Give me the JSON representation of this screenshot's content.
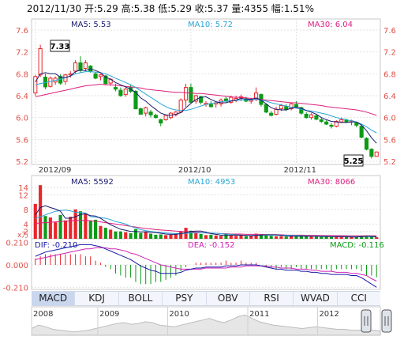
{
  "header": {
    "date": "2012/11/30",
    "open_label": "开:",
    "open": "5.29",
    "high_label": "高:",
    "high": "5.38",
    "low_label": "低:",
    "low": "5.29",
    "close_label": "收:",
    "close": "5.37",
    "volume_label": "量:",
    "volume": "4355",
    "change_label": "幅:",
    "change": "1.51%"
  },
  "colors": {
    "up": "#e8252b",
    "down": "#0c9a17",
    "ma5": "#1a1a6e",
    "ma10": "#2aa6d8",
    "ma30": "#dd1f7d",
    "axis_text": "#e0504a",
    "grid": "#e2e2e2",
    "dif": "#1919a6",
    "dea": "#d222b5"
  },
  "chart_data": [
    {
      "type": "candlestick",
      "legend": [
        "MA5: 5.53",
        "MA10: 5.72",
        "MA30: 6.04"
      ],
      "ylim": [
        5.2,
        7.6
      ],
      "y_ticks": [
        "7.6",
        "7.2",
        "6.8",
        "6.4",
        "6.0",
        "5.6",
        "5.2"
      ],
      "x_ticks": [
        "2012/09",
        "2012/10",
        "2012/11"
      ],
      "x_tick_index": [
        0,
        31,
        52
      ],
      "annotations": {
        "high": "7.33",
        "low": "5.25"
      },
      "ohlc": [
        [
          6.45,
          6.78,
          6.4,
          6.75
        ],
        [
          6.78,
          7.33,
          6.74,
          7.26
        ],
        [
          6.74,
          6.8,
          6.52,
          6.56
        ],
        [
          6.57,
          6.75,
          6.55,
          6.72
        ],
        [
          6.65,
          6.75,
          6.6,
          6.72
        ],
        [
          6.75,
          6.79,
          6.6,
          6.63
        ],
        [
          6.66,
          6.8,
          6.6,
          6.78
        ],
        [
          6.78,
          6.85,
          6.73,
          6.8
        ],
        [
          6.85,
          7.05,
          6.8,
          7.0
        ],
        [
          7.0,
          7.12,
          6.82,
          6.86
        ],
        [
          6.9,
          7.05,
          6.85,
          7.0
        ],
        [
          6.94,
          6.96,
          6.82,
          6.85
        ],
        [
          6.8,
          6.84,
          6.7,
          6.72
        ],
        [
          6.75,
          6.8,
          6.68,
          6.78
        ],
        [
          6.76,
          6.78,
          6.6,
          6.62
        ],
        [
          6.63,
          6.72,
          6.58,
          6.7
        ],
        [
          6.55,
          6.62,
          6.48,
          6.52
        ],
        [
          6.5,
          6.55,
          6.38,
          6.4
        ],
        [
          6.42,
          6.55,
          6.38,
          6.52
        ],
        [
          6.55,
          6.6,
          6.45,
          6.48
        ],
        [
          6.48,
          6.5,
          6.15,
          6.16
        ],
        [
          6.16,
          6.18,
          6.05,
          6.06
        ],
        [
          6.08,
          6.2,
          6.02,
          6.18
        ],
        [
          6.1,
          6.14,
          6.0,
          6.05
        ],
        [
          6.04,
          6.07,
          5.98,
          6.0
        ],
        [
          5.96,
          5.98,
          5.84,
          5.9
        ],
        [
          5.96,
          6.05,
          5.94,
          6.04
        ],
        [
          6.0,
          6.1,
          5.97,
          6.08
        ],
        [
          6.05,
          6.12,
          6.02,
          6.1
        ],
        [
          6.1,
          6.35,
          6.08,
          6.32
        ],
        [
          6.32,
          6.62,
          6.2,
          6.55
        ],
        [
          6.55,
          6.62,
          6.26,
          6.28
        ],
        [
          6.3,
          6.42,
          6.25,
          6.4
        ],
        [
          6.38,
          6.4,
          6.24,
          6.28
        ],
        [
          6.24,
          6.3,
          6.2,
          6.26
        ],
        [
          6.24,
          6.3,
          6.18,
          6.2
        ],
        [
          6.25,
          6.3,
          6.18,
          6.27
        ],
        [
          6.25,
          6.35,
          6.2,
          6.32
        ],
        [
          6.34,
          6.38,
          6.28,
          6.3
        ],
        [
          6.28,
          6.4,
          6.25,
          6.37
        ],
        [
          6.32,
          6.4,
          6.28,
          6.35
        ],
        [
          6.36,
          6.42,
          6.3,
          6.38
        ],
        [
          6.34,
          6.38,
          6.28,
          6.3
        ],
        [
          6.3,
          6.36,
          6.25,
          6.32
        ],
        [
          6.35,
          6.55,
          6.3,
          6.45
        ],
        [
          6.42,
          6.44,
          6.2,
          6.24
        ],
        [
          6.24,
          6.26,
          6.08,
          6.1
        ],
        [
          6.08,
          6.12,
          6.02,
          6.04
        ],
        [
          6.06,
          6.2,
          6.04,
          6.15
        ],
        [
          6.16,
          6.25,
          6.12,
          6.22
        ],
        [
          6.2,
          6.24,
          6.12,
          6.15
        ],
        [
          6.16,
          6.28,
          6.13,
          6.25
        ],
        [
          6.24,
          6.3,
          6.18,
          6.2
        ],
        [
          6.18,
          6.2,
          6.05,
          6.08
        ],
        [
          6.06,
          6.1,
          5.98,
          6.0
        ],
        [
          6.0,
          6.08,
          5.96,
          6.05
        ],
        [
          6.03,
          6.06,
          5.95,
          5.97
        ],
        [
          5.96,
          6.0,
          5.9,
          5.93
        ],
        [
          5.92,
          5.95,
          5.86,
          5.88
        ],
        [
          5.86,
          5.9,
          5.8,
          5.84
        ],
        [
          5.84,
          5.95,
          5.82,
          5.93
        ],
        [
          5.92,
          6.0,
          5.9,
          5.96
        ],
        [
          5.95,
          5.98,
          5.9,
          5.92
        ],
        [
          5.92,
          5.96,
          5.86,
          5.94
        ],
        [
          5.9,
          5.92,
          5.82,
          5.86
        ],
        [
          5.84,
          5.88,
          5.62,
          5.64
        ],
        [
          5.62,
          5.64,
          5.4,
          5.42
        ],
        [
          5.42,
          5.44,
          5.25,
          5.29
        ],
        [
          5.29,
          5.38,
          5.29,
          5.37
        ]
      ],
      "ma5": [
        6.65,
        6.8,
        6.82,
        6.8,
        6.8,
        6.74,
        6.73,
        6.76,
        6.84,
        6.87,
        6.86,
        6.89,
        6.86,
        6.82,
        6.74,
        6.7,
        6.64,
        6.6,
        6.56,
        6.52,
        6.46,
        6.36,
        6.3,
        6.22,
        6.15,
        6.08,
        6.05,
        6.04,
        6.06,
        6.09,
        6.18,
        6.26,
        6.33,
        6.37,
        6.38,
        6.33,
        6.29,
        6.27,
        6.27,
        6.3,
        6.32,
        6.35,
        6.34,
        6.33,
        6.36,
        6.32,
        6.25,
        6.18,
        6.15,
        6.14,
        6.14,
        6.17,
        6.19,
        6.17,
        6.13,
        6.1,
        6.06,
        6.0,
        5.96,
        5.93,
        5.92,
        5.91,
        5.91,
        5.92,
        5.92,
        5.86,
        5.76,
        5.63,
        5.53
      ],
      "ma10": [
        6.6,
        6.62,
        6.64,
        6.66,
        6.68,
        6.7,
        6.73,
        6.76,
        6.8,
        6.82,
        6.84,
        6.84,
        6.83,
        6.82,
        6.8,
        6.76,
        6.72,
        6.68,
        6.64,
        6.6,
        6.55,
        6.49,
        6.43,
        6.37,
        6.31,
        6.25,
        6.2,
        6.16,
        6.14,
        6.13,
        6.13,
        6.15,
        6.18,
        6.21,
        6.24,
        6.26,
        6.27,
        6.29,
        6.3,
        6.31,
        6.31,
        6.32,
        6.32,
        6.32,
        6.33,
        6.32,
        6.3,
        6.27,
        6.25,
        6.23,
        6.21,
        6.19,
        6.17,
        6.15,
        6.13,
        6.12,
        6.1,
        6.08,
        6.06,
        6.03,
        6.0,
        5.98,
        5.96,
        5.94,
        5.92,
        5.88,
        5.83,
        5.77,
        5.72
      ],
      "ma30": [
        6.38,
        6.4,
        6.42,
        6.44,
        6.46,
        6.48,
        6.5,
        6.52,
        6.54,
        6.56,
        6.58,
        6.59,
        6.6,
        6.61,
        6.6,
        6.6,
        6.59,
        6.58,
        6.57,
        6.56,
        6.55,
        6.54,
        6.52,
        6.51,
        6.5,
        6.49,
        6.48,
        6.47,
        6.46,
        6.46,
        6.45,
        6.45,
        6.44,
        6.44,
        6.43,
        6.42,
        6.41,
        6.4,
        6.39,
        6.38,
        6.37,
        6.37,
        6.36,
        6.35,
        6.34,
        6.33,
        6.32,
        6.31,
        6.3,
        6.29,
        6.28,
        6.27,
        6.27,
        6.26,
        6.25,
        6.24,
        6.23,
        6.22,
        6.2,
        6.19,
        6.18,
        6.17,
        6.16,
        6.15,
        6.14,
        6.12,
        6.1,
        6.07,
        6.04
      ]
    },
    {
      "type": "bar",
      "legend": [
        "MA5: 5592",
        "MA10: 4953",
        "MA30: 8066"
      ],
      "unit": "x万",
      "ylim": [
        0,
        15.5
      ],
      "y_ticks": [
        "14",
        "12",
        "8",
        "4",
        "2"
      ],
      "volume": [
        9.5,
        14.6,
        6.2,
        5.8,
        4.5,
        6.5,
        5.0,
        6.0,
        8.0,
        7.5,
        7.0,
        5.0,
        5.2,
        3.5,
        3.0,
        2.5,
        2.0,
        2.0,
        1.8,
        1.5,
        2.6,
        1.6,
        2.0,
        1.4,
        1.1,
        1.2,
        1.0,
        1.1,
        1.4,
        2.1,
        3.0,
        2.2,
        1.6,
        1.3,
        1.0,
        1.1,
        0.9,
        0.8,
        1.3,
        0.9,
        0.8,
        1.0,
        0.7,
        0.8,
        1.4,
        1.3,
        1.1,
        0.8,
        0.7,
        0.7,
        0.6,
        0.9,
        0.7,
        0.8,
        0.7,
        0.7,
        0.6,
        0.5,
        0.6,
        0.5,
        0.6,
        0.6,
        0.5,
        0.5,
        0.5,
        0.8,
        0.9,
        0.6,
        0.44
      ],
      "ma5": [
        6.5,
        8.5,
        9.0,
        8.5,
        8.1,
        7.5,
        5.6,
        5.6,
        6.0,
        6.6,
        6.8,
        6.3,
        6.2,
        5.6,
        4.7,
        3.8,
        3.2,
        2.6,
        2.3,
        2.0,
        2.0,
        1.9,
        1.9,
        1.8,
        1.7,
        1.5,
        1.3,
        1.2,
        1.2,
        1.4,
        1.7,
        2.0,
        2.1,
        2.1,
        1.8,
        1.4,
        1.2,
        1.0,
        1.0,
        1.0,
        1.0,
        1.0,
        0.9,
        0.8,
        0.9,
        1.0,
        1.1,
        1.1,
        1.1,
        0.9,
        0.8,
        0.7,
        0.7,
        0.7,
        0.7,
        0.7,
        0.7,
        0.6,
        0.6,
        0.6,
        0.6,
        0.6,
        0.6,
        0.5,
        0.5,
        0.6,
        0.7,
        0.7,
        0.56
      ],
      "ma10": [
        5.5,
        6.0,
        6.5,
        7.0,
        7.5,
        7.7,
        7.8,
        7.6,
        7.2,
        7.2,
        7.0,
        6.0,
        5.9,
        5.8,
        5.6,
        5.2,
        4.7,
        4.4,
        4.0,
        3.4,
        2.9,
        2.5,
        2.2,
        2.0,
        1.8,
        1.7,
        1.6,
        1.5,
        1.4,
        1.4,
        1.5,
        1.6,
        1.6,
        1.6,
        1.6,
        1.6,
        1.5,
        1.4,
        1.3,
        1.2,
        1.1,
        1.0,
        0.9,
        0.9,
        1.0,
        1.0,
        1.0,
        1.0,
        1.0,
        1.0,
        1.0,
        0.9,
        0.9,
        0.8,
        0.8,
        0.7,
        0.7,
        0.7,
        0.7,
        0.6,
        0.6,
        0.6,
        0.6,
        0.6,
        0.6,
        0.6,
        0.6,
        0.6,
        0.5
      ],
      "ma30": [
        4.2,
        4.3,
        4.4,
        4.5,
        4.6,
        4.7,
        4.8,
        4.9,
        5.0,
        5.0,
        5.0,
        4.9,
        4.8,
        4.6,
        4.4,
        4.2,
        4.0,
        3.8,
        3.6,
        3.4,
        3.2,
        3.0,
        2.8,
        2.7,
        2.5,
        2.4,
        2.3,
        2.2,
        2.1,
        2.0,
        2.0,
        1.9,
        1.8,
        1.7,
        1.6,
        1.5,
        1.5,
        1.4,
        1.4,
        1.3,
        1.3,
        1.3,
        1.2,
        1.2,
        1.2,
        1.2,
        1.1,
        1.1,
        1.1,
        1.1,
        1.0,
        1.0,
        1.0,
        1.0,
        0.95,
        0.93,
        0.91,
        0.9,
        0.89,
        0.88,
        0.87,
        0.86,
        0.85,
        0.84,
        0.83,
        0.82,
        0.82,
        0.81,
        0.81
      ]
    },
    {
      "type": "macd",
      "legend": [
        "DIF: -0.210",
        "DEA: -0.152",
        "MACD: -0.116"
      ],
      "ylim": [
        -0.23,
        0.23
      ],
      "y_ticks": [
        "0.210",
        "0.000",
        "-0.210"
      ],
      "dif": [
        0.08,
        0.1,
        0.12,
        0.13,
        0.14,
        0.15,
        0.16,
        0.17,
        0.18,
        0.19,
        0.19,
        0.19,
        0.18,
        0.17,
        0.15,
        0.13,
        0.11,
        0.09,
        0.07,
        0.05,
        0.02,
        -0.01,
        -0.03,
        -0.05,
        -0.06,
        -0.08,
        -0.08,
        -0.08,
        -0.08,
        -0.07,
        -0.05,
        -0.04,
        -0.03,
        -0.03,
        -0.02,
        -0.02,
        -0.02,
        -0.02,
        -0.01,
        -0.01,
        -0.01,
        0.0,
        0.0,
        0.0,
        0.0,
        -0.01,
        -0.02,
        -0.03,
        -0.04,
        -0.04,
        -0.05,
        -0.05,
        -0.05,
        -0.06,
        -0.06,
        -0.07,
        -0.07,
        -0.08,
        -0.08,
        -0.09,
        -0.09,
        -0.09,
        -0.09,
        -0.1,
        -0.1,
        -0.12,
        -0.15,
        -0.18,
        -0.21
      ],
      "dea": [
        0.05,
        0.06,
        0.07,
        0.08,
        0.09,
        0.1,
        0.11,
        0.12,
        0.13,
        0.14,
        0.15,
        0.15,
        0.16,
        0.16,
        0.16,
        0.15,
        0.15,
        0.14,
        0.13,
        0.11,
        0.1,
        0.08,
        0.06,
        0.04,
        0.02,
        0.0,
        -0.01,
        -0.02,
        -0.03,
        -0.04,
        -0.04,
        -0.04,
        -0.04,
        -0.04,
        -0.03,
        -0.03,
        -0.03,
        -0.03,
        -0.03,
        -0.02,
        -0.02,
        -0.02,
        -0.01,
        -0.01,
        -0.01,
        -0.01,
        -0.01,
        -0.02,
        -0.02,
        -0.03,
        -0.03,
        -0.03,
        -0.04,
        -0.04,
        -0.04,
        -0.05,
        -0.05,
        -0.06,
        -0.06,
        -0.06,
        -0.07,
        -0.07,
        -0.07,
        -0.08,
        -0.08,
        -0.09,
        -0.1,
        -0.13,
        -0.152
      ],
      "macd": [
        0.06,
        0.08,
        0.1,
        0.1,
        0.1,
        0.1,
        0.1,
        0.1,
        0.1,
        0.1,
        0.08,
        0.08,
        0.04,
        0.02,
        -0.02,
        -0.04,
        -0.08,
        -0.1,
        -0.12,
        -0.12,
        -0.16,
        -0.18,
        -0.18,
        -0.18,
        -0.16,
        -0.16,
        -0.14,
        -0.12,
        -0.1,
        -0.06,
        -0.02,
        0.0,
        0.02,
        0.02,
        0.02,
        0.02,
        0.02,
        0.02,
        0.04,
        0.02,
        0.02,
        0.04,
        0.02,
        0.02,
        0.02,
        0.0,
        -0.02,
        -0.02,
        -0.04,
        -0.02,
        -0.04,
        -0.04,
        -0.02,
        -0.04,
        -0.04,
        -0.04,
        -0.04,
        -0.04,
        -0.04,
        -0.06,
        -0.04,
        -0.04,
        -0.04,
        -0.04,
        -0.04,
        -0.06,
        -0.1,
        -0.1,
        -0.116
      ]
    },
    {
      "type": "area",
      "x_ticks": [
        "2008",
        "2009",
        "2010",
        "2011",
        "2012"
      ],
      "x_tick_pos": [
        0.0,
        0.19,
        0.39,
        0.62,
        0.82
      ],
      "ylim": [
        0,
        30
      ],
      "y": [
        8,
        12,
        10,
        7,
        6,
        5,
        4,
        5,
        6,
        8,
        10,
        12,
        14,
        15,
        13,
        14,
        16,
        15,
        12,
        11,
        10,
        12,
        14,
        16,
        18,
        20,
        17,
        15,
        18,
        22,
        24,
        20,
        16,
        14,
        12,
        11,
        10,
        9,
        8,
        9,
        10,
        9,
        8,
        7,
        7,
        6,
        6,
        7,
        6,
        5
      ]
    }
  ],
  "tabs": [
    "MACD",
    "KDJ",
    "BOLL",
    "PSY",
    "OBV",
    "RSI",
    "WVAD",
    "CCI"
  ]
}
